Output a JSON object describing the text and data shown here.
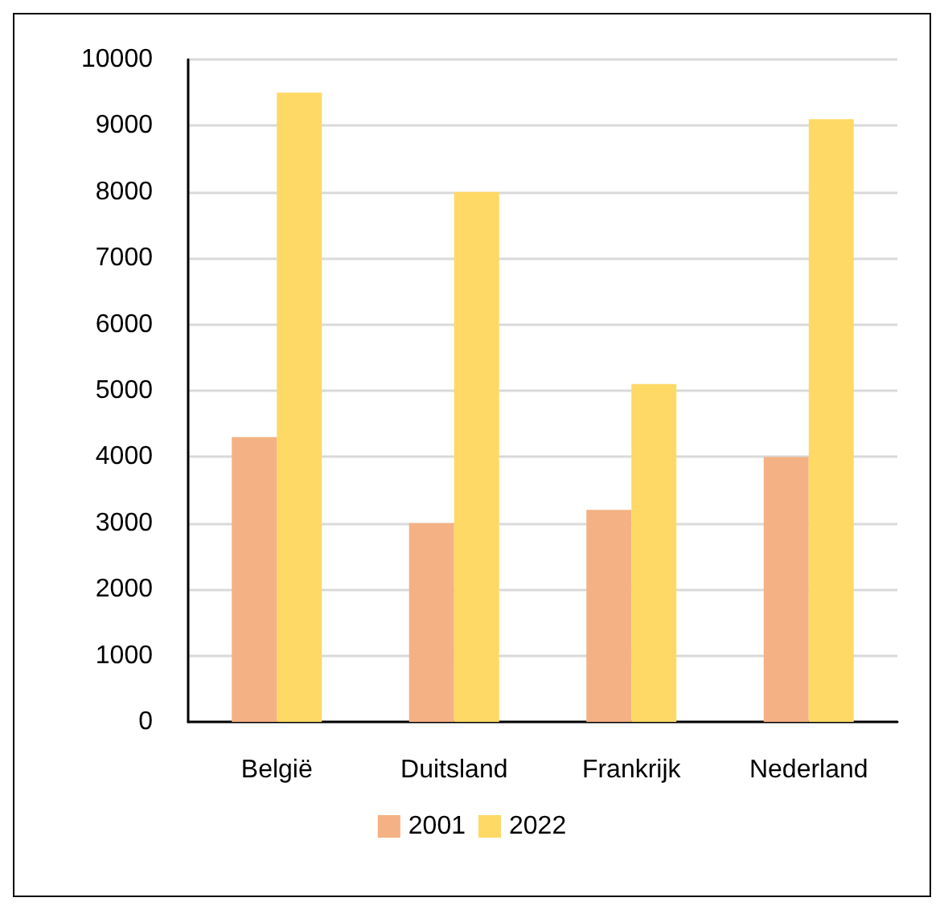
{
  "chart_data": {
    "type": "bar",
    "categories": [
      "België",
      "Duitsland",
      "Frankrijk",
      "Nederland"
    ],
    "series": [
      {
        "name": "2001",
        "color": "#f4b183",
        "values": [
          4300,
          3000,
          3200,
          4000
        ]
      },
      {
        "name": "2022",
        "color": "#ffd966",
        "values": [
          9500,
          8000,
          5100,
          9100
        ]
      }
    ],
    "ylim": [
      0,
      10000
    ],
    "yticks": [
      0,
      1000,
      2000,
      3000,
      4000,
      5000,
      6000,
      7000,
      8000,
      9000,
      10000
    ],
    "grid": "y",
    "legend": "bottom"
  }
}
